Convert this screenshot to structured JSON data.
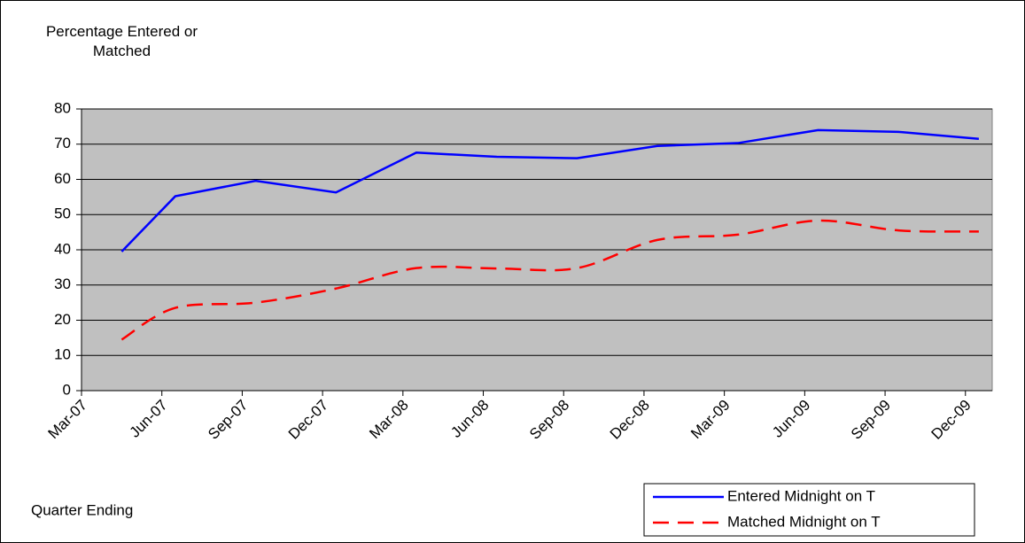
{
  "chart_data": {
    "type": "line",
    "y_label": "Percentage Entered or Matched",
    "x_label": "Quarter Ending",
    "x": [
      "Apr-07",
      "Jun-07",
      "Sep-07",
      "Dec-07",
      "Mar-08",
      "Jun-08",
      "Sep-08",
      "Dec-08",
      "Mar-09",
      "Jun-09",
      "Sep-09",
      "Dec-09"
    ],
    "xlim": [
      "Mar-07",
      "Jan-10"
    ],
    "xticks": [
      "Mar-07",
      "Jun-07",
      "Sep-07",
      "Dec-07",
      "Mar-08",
      "Jun-08",
      "Sep-08",
      "Dec-08",
      "Mar-09",
      "Jun-09",
      "Sep-09",
      "Dec-09"
    ],
    "ylim": [
      0,
      80
    ],
    "yticks": [
      0,
      10,
      20,
      30,
      40,
      50,
      60,
      70,
      80
    ],
    "grid": true,
    "plot_background": "#c0c0c0",
    "legend": "bottom-right",
    "series": [
      {
        "name": "Entered Midnight on T",
        "color": "#0000ff",
        "line_style": "solid",
        "smooth": false,
        "values": [
          39.5,
          55.2,
          59.6,
          56.3,
          67.6,
          66.4,
          66.0,
          69.5,
          70.3,
          74.0,
          73.5,
          71.5
        ]
      },
      {
        "name": "Matched Midnight on T",
        "color": "#ff0000",
        "line_style": "dashed",
        "smooth": true,
        "values": [
          14.5,
          23.5,
          25.0,
          29.0,
          34.8,
          34.7,
          34.8,
          42.8,
          44.3,
          48.3,
          45.5,
          45.2
        ]
      }
    ]
  }
}
